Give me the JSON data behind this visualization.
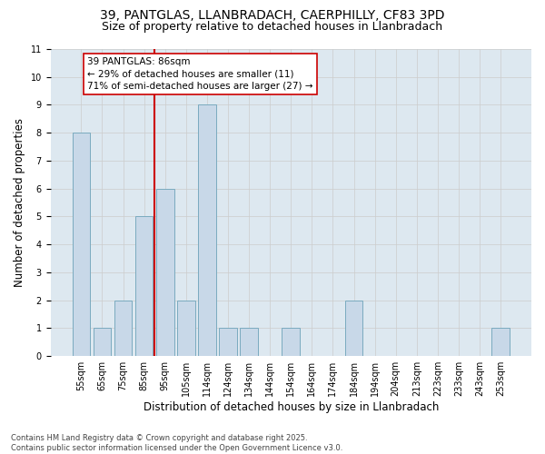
{
  "title_line1": "39, PANTGLAS, LLANBRADACH, CAERPHILLY, CF83 3PD",
  "title_line2": "Size of property relative to detached houses in Llanbradach",
  "xlabel": "Distribution of detached houses by size in Llanbradach",
  "ylabel": "Number of detached properties",
  "categories": [
    "55sqm",
    "65sqm",
    "75sqm",
    "85sqm",
    "95sqm",
    "105sqm",
    "114sqm",
    "124sqm",
    "134sqm",
    "144sqm",
    "154sqm",
    "164sqm",
    "174sqm",
    "184sqm",
    "194sqm",
    "204sqm",
    "213sqm",
    "223sqm",
    "233sqm",
    "243sqm",
    "253sqm"
  ],
  "values": [
    8,
    1,
    2,
    5,
    6,
    2,
    9,
    1,
    1,
    0,
    1,
    0,
    0,
    2,
    0,
    0,
    0,
    0,
    0,
    0,
    1
  ],
  "bar_color": "#c8d8e8",
  "bar_edge_color": "#7aaabf",
  "vline_color": "#cc0000",
  "vline_x": 3.5,
  "annotation_text": "39 PANTGLAS: 86sqm\n← 29% of detached houses are smaller (11)\n71% of semi-detached houses are larger (27) →",
  "annotation_box_color": "white",
  "annotation_box_edge_color": "#cc0000",
  "ylim": [
    0,
    11
  ],
  "yticks": [
    0,
    1,
    2,
    3,
    4,
    5,
    6,
    7,
    8,
    9,
    10,
    11
  ],
  "footer_text": "Contains HM Land Registry data © Crown copyright and database right 2025.\nContains public sector information licensed under the Open Government Licence v3.0.",
  "grid_color": "#cccccc",
  "background_color": "#dde8f0",
  "title_fontsize": 10,
  "subtitle_fontsize": 9,
  "axis_label_fontsize": 8.5,
  "tick_fontsize": 7,
  "footer_fontsize": 6,
  "annotation_fontsize": 7.5
}
